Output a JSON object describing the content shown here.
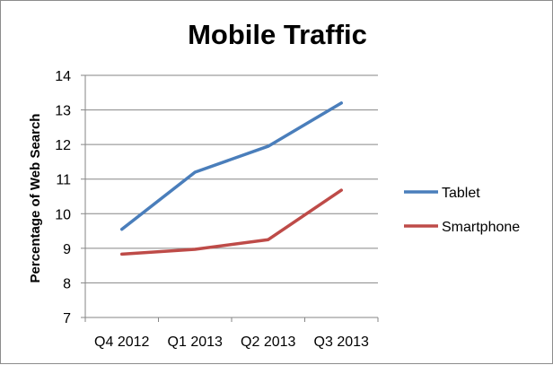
{
  "chart_data": {
    "type": "line",
    "title": "Mobile Traffic",
    "xlabel": "",
    "ylabel": "Percentage of Web Search",
    "categories": [
      "Q4 2012",
      "Q1 2013",
      "Q2 2013",
      "Q3 2013"
    ],
    "ylim": [
      7,
      14
    ],
    "yticks": [
      7,
      8,
      9,
      10,
      11,
      12,
      13,
      14
    ],
    "grid": true,
    "legend_position": "right",
    "series": [
      {
        "name": "Tablet",
        "color": "#4a7ebb",
        "values": [
          9.55,
          11.2,
          11.95,
          13.2
        ]
      },
      {
        "name": "Smartphone",
        "color": "#be4b48",
        "values": [
          8.83,
          8.97,
          9.25,
          10.68
        ]
      }
    ]
  }
}
